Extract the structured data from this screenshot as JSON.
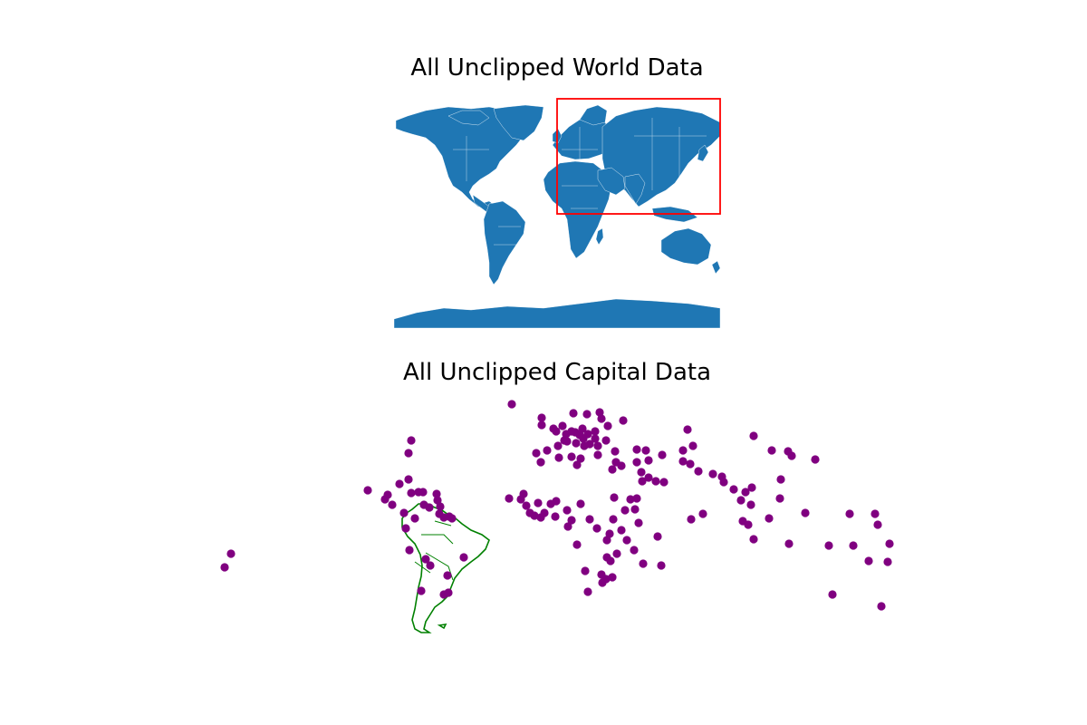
{
  "figure": {
    "top_title": "All Unclipped World Data",
    "bottom_title": "All Unclipped Capital Data"
  },
  "colors": {
    "land": "#1f77b4",
    "country_border": "#ffffff",
    "bbox": "#ff0000",
    "capitals": "#800080",
    "south_america_outline": "#008000"
  },
  "top_panel": {
    "description_layer": "world",
    "bbox_region": "Eurasia-Africa-NE-quadrant",
    "legend": "none"
  },
  "bottom_panel": {
    "layers": [
      "capital-points",
      "south-america-outline"
    ]
  }
}
